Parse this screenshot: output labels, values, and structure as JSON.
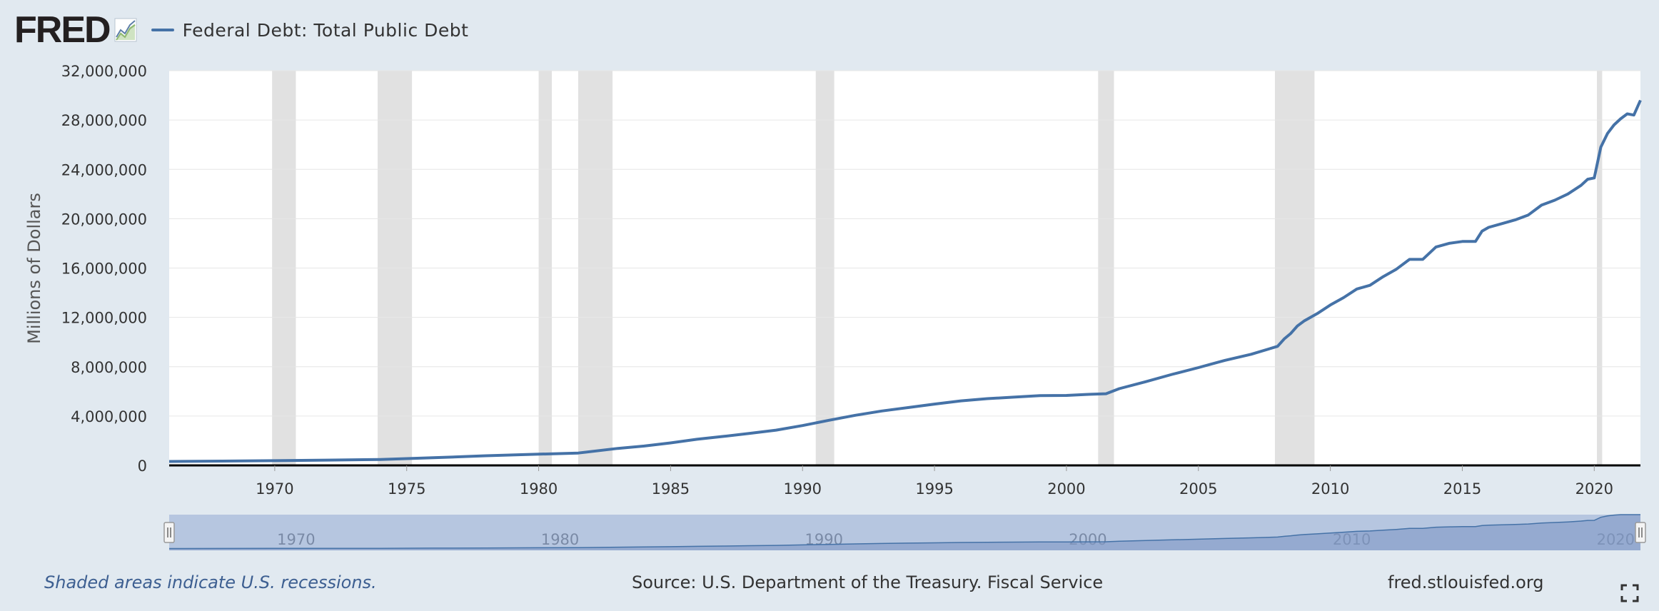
{
  "brand": {
    "logo_text": "FRED",
    "logo_mark": "fred-logo-chart-icon"
  },
  "colors": {
    "series": "#4572a7",
    "recession": "#e1e1e1",
    "navigator_fill": "#b6c6e0",
    "navigator_line": "#4572a7",
    "background": "#e1e9f0"
  },
  "footer": {
    "note": "Shaded areas indicate U.S. recessions.",
    "source": "Source: U.S. Department of the Treasury. Fiscal Service",
    "site": "fred.stlouisfed.org",
    "fullscreen_icon": "fullscreen-icon"
  },
  "navigator": {
    "labels": [
      "1970",
      "1980",
      "1990",
      "2000",
      "2010",
      "2020"
    ]
  },
  "chart_data": {
    "type": "line",
    "title": "",
    "xlabel": "",
    "ylabel": "Millions of Dollars",
    "xlim": [
      1966.0,
      2021.75
    ],
    "ylim": [
      0,
      32000000
    ],
    "grid": true,
    "legend": "top-left",
    "y_ticks": [
      0,
      4000000,
      8000000,
      12000000,
      16000000,
      20000000,
      24000000,
      28000000,
      32000000
    ],
    "y_tick_labels": [
      "0",
      "4,000,000",
      "8,000,000",
      "12,000,000",
      "16,000,000",
      "20,000,000",
      "24,000,000",
      "28,000,000",
      "32,000,000"
    ],
    "x_ticks": [
      1970,
      1975,
      1980,
      1985,
      1990,
      1995,
      2000,
      2005,
      2010,
      2015,
      2020
    ],
    "x_tick_labels": [
      "1970",
      "1975",
      "1980",
      "1985",
      "1990",
      "1995",
      "2000",
      "2005",
      "2010",
      "2015",
      "2020"
    ],
    "recessions": [
      [
        1969.9,
        1970.8
      ],
      [
        1973.9,
        1975.2
      ],
      [
        1980.0,
        1980.5
      ],
      [
        1981.5,
        1982.8
      ],
      [
        1990.5,
        1991.2
      ],
      [
        2001.2,
        2001.8
      ],
      [
        2007.9,
        2009.4
      ],
      [
        2020.1,
        2020.3
      ]
    ],
    "series": [
      {
        "name": "Federal Debt: Total Public Debt",
        "x": [
          1966.0,
          1968.0,
          1970.0,
          1972.0,
          1974.0,
          1976.0,
          1978.0,
          1980.0,
          1981.5,
          1983.0,
          1984.0,
          1985.0,
          1986.0,
          1987.0,
          1988.0,
          1989.0,
          1990.0,
          1991.0,
          1992.0,
          1993.0,
          1994.0,
          1995.0,
          1996.0,
          1997.0,
          1998.0,
          1999.0,
          2000.0,
          2000.75,
          2001.5,
          2002.0,
          2003.0,
          2004.0,
          2005.0,
          2006.0,
          2007.0,
          2008.0,
          2008.25,
          2008.5,
          2008.75,
          2009.0,
          2009.5,
          2010.0,
          2010.5,
          2011.0,
          2011.5,
          2012.0,
          2012.5,
          2013.0,
          2013.5,
          2014.0,
          2014.5,
          2015.0,
          2015.5,
          2015.75,
          2016.0,
          2016.5,
          2017.0,
          2017.5,
          2018.0,
          2018.5,
          2019.0,
          2019.5,
          2019.75,
          2020.0,
          2020.25,
          2020.5,
          2020.75,
          2021.0,
          2021.25,
          2021.5,
          2021.75
        ],
        "y": [
          320000,
          350000,
          380000,
          430000,
          480000,
          620000,
          780000,
          910000,
          1000000,
          1380000,
          1570000,
          1820000,
          2120000,
          2350000,
          2600000,
          2860000,
          3230000,
          3660000,
          4060000,
          4410000,
          4690000,
          4970000,
          5230000,
          5410000,
          5530000,
          5660000,
          5670000,
          5750000,
          5810000,
          6220000,
          6780000,
          7380000,
          7930000,
          8510000,
          9010000,
          9650000,
          10250000,
          10700000,
          11300000,
          11700000,
          12300000,
          13000000,
          13600000,
          14300000,
          14600000,
          15300000,
          15900000,
          16700000,
          16700000,
          17700000,
          18000000,
          18150000,
          18150000,
          19000000,
          19300000,
          19600000,
          19900000,
          20300000,
          21100000,
          21500000,
          22000000,
          22700000,
          23200000,
          23300000,
          25800000,
          26900000,
          27600000,
          28100000,
          28500000,
          28400000,
          29600000
        ]
      }
    ]
  }
}
